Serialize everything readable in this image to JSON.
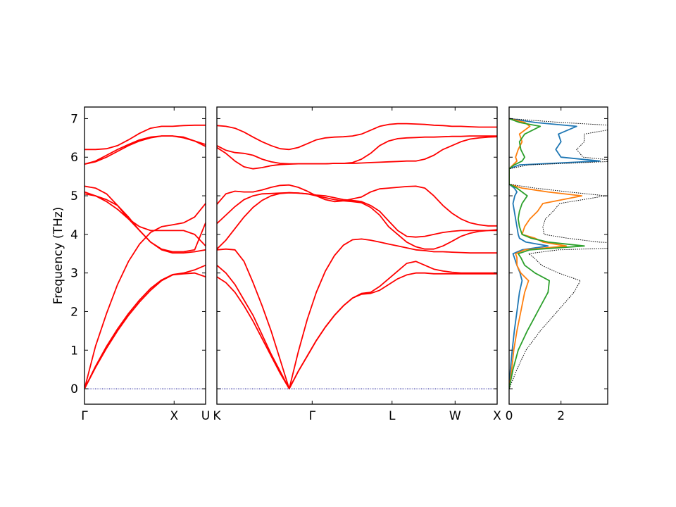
{
  "chart_data": [
    {
      "type": "line",
      "title": "",
      "xlabel": "",
      "ylabel": "Frequency (THz)",
      "ylim": [
        -0.4,
        7.3
      ],
      "yticks": [
        0,
        1,
        2,
        3,
        4,
        5,
        6,
        7
      ],
      "segments": [
        {
          "xticks": [
            "Γ",
            "X",
            "U"
          ],
          "x": [
            0,
            0.2,
            0.4,
            0.6,
            0.8,
            1.0,
            1.2,
            1.4,
            1.6,
            1.8,
            2.0,
            2.2
          ],
          "series": [
            {
              "values": [
                0,
                0.55,
                1.05,
                1.5,
                1.9,
                2.25,
                2.55,
                2.8,
                2.95,
                2.98,
                3.0,
                2.9
              ]
            },
            {
              "values": [
                0,
                0.58,
                1.1,
                1.55,
                1.95,
                2.3,
                2.6,
                2.82,
                2.96,
                3.0,
                3.08,
                3.2
              ]
            },
            {
              "values": [
                0,
                1.1,
                1.95,
                2.7,
                3.3,
                3.75,
                4.05,
                4.2,
                4.25,
                4.3,
                4.45,
                4.8
              ]
            },
            {
              "values": [
                5.05,
                5.0,
                4.9,
                4.75,
                4.45,
                4.1,
                3.8,
                3.6,
                3.52,
                3.52,
                3.55,
                3.6
              ]
            },
            {
              "values": [
                5.1,
                5.0,
                4.85,
                4.65,
                4.4,
                4.2,
                4.1,
                4.1,
                4.1,
                4.1,
                4.0,
                3.7
              ]
            },
            {
              "values": [
                5.25,
                5.2,
                5.05,
                4.75,
                4.4,
                4.1,
                3.8,
                3.62,
                3.55,
                3.55,
                3.6,
                4.3
              ]
            },
            {
              "values": [
                5.82,
                5.88,
                6.0,
                6.15,
                6.3,
                6.42,
                6.5,
                6.55,
                6.55,
                6.52,
                6.42,
                6.28
              ]
            },
            {
              "values": [
                5.82,
                5.9,
                6.05,
                6.2,
                6.33,
                6.45,
                6.52,
                6.55,
                6.55,
                6.5,
                6.42,
                6.33
              ]
            },
            {
              "values": [
                6.2,
                6.2,
                6.22,
                6.3,
                6.45,
                6.62,
                6.75,
                6.8,
                6.8,
                6.82,
                6.83,
                6.83
              ]
            },
            {
              "values": [
                0,
                0,
                0,
                0,
                0,
                0,
                0,
                0,
                0,
                0,
                0,
                0
              ],
              "color": "#00008b",
              "dotted": true
            }
          ]
        },
        {
          "xticks": [
            "K",
            "Γ",
            "L",
            "W",
            "X"
          ],
          "x": [
            0,
            0.2,
            0.4,
            0.6,
            0.8,
            1.0,
            1.2,
            1.4,
            1.6,
            1.8,
            2.0,
            2.2,
            2.4,
            2.6,
            2.8,
            3.0,
            3.2,
            3.4,
            3.6,
            3.8,
            4.0,
            4.2,
            4.4,
            4.6,
            4.8,
            5.0,
            5.2,
            5.4,
            5.6,
            5.8,
            6.0,
            6.2
          ],
          "series": [
            {
              "values": [
                2.9,
                2.75,
                2.5,
                2.15,
                1.75,
                1.3,
                0.85,
                0.4,
                0.0,
                0.45,
                0.85,
                1.25,
                1.6,
                1.9,
                2.15,
                2.35,
                2.45,
                2.47,
                2.55,
                2.7,
                2.85,
                2.95,
                3.0,
                3.0,
                2.98,
                2.98,
                2.98,
                2.98,
                2.98,
                2.98,
                2.98,
                2.98
              ]
            },
            {
              "values": [
                3.2,
                3.0,
                2.7,
                2.3,
                1.9,
                1.4,
                0.9,
                0.45,
                0.0,
                0.45,
                0.85,
                1.25,
                1.6,
                1.9,
                2.15,
                2.35,
                2.47,
                2.5,
                2.65,
                2.85,
                3.05,
                3.25,
                3.3,
                3.2,
                3.1,
                3.05,
                3.02,
                3.0,
                3.0,
                3.0,
                3.0,
                3.0
              ]
            },
            {
              "values": [
                3.6,
                3.62,
                3.6,
                3.3,
                2.75,
                2.15,
                1.5,
                0.75,
                0.0,
                0.95,
                1.8,
                2.5,
                3.05,
                3.45,
                3.72,
                3.86,
                3.88,
                3.85,
                3.8,
                3.75,
                3.7,
                3.65,
                3.6,
                3.58,
                3.55,
                3.55,
                3.54,
                3.53,
                3.52,
                3.52,
                3.52,
                3.52
              ]
            },
            {
              "values": [
                3.62,
                3.85,
                4.15,
                4.45,
                4.7,
                4.88,
                5.0,
                5.06,
                5.08,
                5.07,
                5.05,
                5.0,
                4.95,
                4.9,
                4.87,
                4.85,
                4.82,
                4.7,
                4.5,
                4.2,
                4.0,
                3.8,
                3.68,
                3.62,
                3.62,
                3.7,
                3.82,
                3.95,
                4.03,
                4.08,
                4.1,
                4.12
              ]
            },
            {
              "values": [
                4.28,
                4.5,
                4.72,
                4.9,
                5.0,
                5.05,
                5.06,
                5.07,
                5.08,
                5.07,
                5.05,
                5.02,
                5.0,
                4.95,
                4.9,
                4.88,
                4.85,
                4.75,
                4.6,
                4.35,
                4.1,
                3.95,
                3.93,
                3.95,
                4.0,
                4.05,
                4.08,
                4.1,
                4.1,
                4.1,
                4.1,
                4.1
              ]
            },
            {
              "values": [
                4.78,
                5.05,
                5.12,
                5.1,
                5.1,
                5.15,
                5.22,
                5.27,
                5.28,
                5.22,
                5.12,
                5.0,
                4.9,
                4.85,
                4.87,
                4.92,
                4.97,
                5.1,
                5.18,
                5.2,
                5.22,
                5.24,
                5.25,
                5.2,
                5.0,
                4.75,
                4.55,
                4.4,
                4.3,
                4.25,
                4.22,
                4.22
              ]
            },
            {
              "values": [
                6.25,
                6.1,
                5.9,
                5.75,
                5.7,
                5.73,
                5.78,
                5.81,
                5.82,
                5.83,
                5.83,
                5.83,
                5.83,
                5.84,
                5.84,
                5.84,
                5.85,
                5.86,
                5.87,
                5.88,
                5.89,
                5.9,
                5.9,
                5.95,
                6.05,
                6.2,
                6.3,
                6.4,
                6.47,
                6.5,
                6.52,
                6.53
              ]
            },
            {
              "values": [
                6.3,
                6.18,
                6.12,
                6.1,
                6.05,
                5.95,
                5.88,
                5.84,
                5.83,
                5.83,
                5.83,
                5.83,
                5.83,
                5.84,
                5.84,
                5.86,
                5.95,
                6.1,
                6.3,
                6.42,
                6.48,
                6.5,
                6.51,
                6.52,
                6.52,
                6.53,
                6.54,
                6.54,
                6.55,
                6.55,
                6.55,
                6.55
              ]
            },
            {
              "values": [
                6.82,
                6.8,
                6.75,
                6.65,
                6.52,
                6.4,
                6.3,
                6.22,
                6.2,
                6.25,
                6.35,
                6.45,
                6.5,
                6.52,
                6.53,
                6.55,
                6.6,
                6.7,
                6.8,
                6.85,
                6.87,
                6.87,
                6.86,
                6.85,
                6.83,
                6.82,
                6.8,
                6.8,
                6.79,
                6.78,
                6.78,
                6.78
              ]
            },
            {
              "values": [
                0,
                0,
                0,
                0,
                0,
                0,
                0,
                0,
                0,
                0,
                0,
                0,
                0,
                0,
                0,
                0,
                0,
                0,
                0,
                0,
                0,
                0,
                0,
                0,
                0,
                0,
                0,
                0,
                0,
                0,
                0,
                0
              ],
              "color": "#00008b",
              "dotted": true
            }
          ]
        }
      ]
    },
    {
      "type": "line",
      "orientation": "horizontal",
      "xlabel": "",
      "ylabel": "",
      "xlim": [
        0,
        3.8
      ],
      "ylim": [
        -0.4,
        7.3
      ],
      "xticks": [
        0,
        2
      ],
      "freq": [
        0,
        0.5,
        1.0,
        1.5,
        2.0,
        2.5,
        2.8,
        3.0,
        3.2,
        3.4,
        3.5,
        3.6,
        3.7,
        3.8,
        3.9,
        4.0,
        4.2,
        4.4,
        4.6,
        4.8,
        5.0,
        5.1,
        5.2,
        5.3,
        5.5,
        5.7,
        5.8,
        5.9,
        6.0,
        6.2,
        6.4,
        6.6,
        6.8,
        6.9,
        7.0
      ],
      "series": [
        {
          "values": [
            0,
            0.05,
            0.12,
            0.2,
            0.3,
            0.4,
            0.5,
            0.42,
            0.3,
            0.2,
            0.15,
            0.5,
            1.5,
            0.65,
            0.4,
            0.35,
            0.3,
            0.25,
            0.2,
            0.15,
            0.22,
            0.3,
            0.2,
            0,
            0,
            0,
            0.4,
            3.5,
            2.0,
            1.8,
            2.0,
            1.9,
            2.6,
            1.0,
            0
          ],
          "color": "#1f77b4"
        },
        {
          "values": [
            0,
            0.1,
            0.18,
            0.3,
            0.45,
            0.6,
            0.75,
            0.45,
            0.3,
            0.3,
            0.25,
            0.6,
            2.2,
            1.3,
            1.0,
            0.5,
            0.6,
            0.8,
            1.1,
            1.3,
            2.8,
            1.5,
            0.5,
            0,
            0,
            0,
            0.15,
            0.3,
            0.25,
            0.35,
            0.5,
            0.4,
            0.8,
            0.6,
            0
          ],
          "color": "#ff7f0e"
        },
        {
          "values": [
            0,
            0.15,
            0.35,
            0.7,
            1.1,
            1.5,
            1.55,
            1.0,
            0.6,
            0.45,
            0.35,
            0.8,
            2.9,
            1.5,
            0.85,
            0.5,
            0.4,
            0.35,
            0.4,
            0.5,
            0.7,
            0.5,
            0.3,
            0,
            0,
            0,
            0.2,
            0.5,
            0.6,
            0.45,
            0.4,
            0.6,
            1.2,
            0.4,
            0
          ],
          "color": "#2ca02c"
        },
        {
          "values": [
            0,
            0.3,
            0.65,
            1.2,
            1.85,
            2.5,
            2.75,
            1.9,
            1.25,
            0.95,
            0.75,
            1.9,
            6.6,
            3.45,
            2.25,
            1.35,
            1.3,
            1.4,
            1.7,
            1.95,
            3.72,
            2.3,
            1.0,
            0,
            0,
            0,
            0.75,
            4.3,
            2.85,
            2.6,
            2.9,
            2.9,
            4.6,
            2.0,
            0
          ],
          "color": "#000000",
          "dotted": true
        }
      ]
    }
  ]
}
